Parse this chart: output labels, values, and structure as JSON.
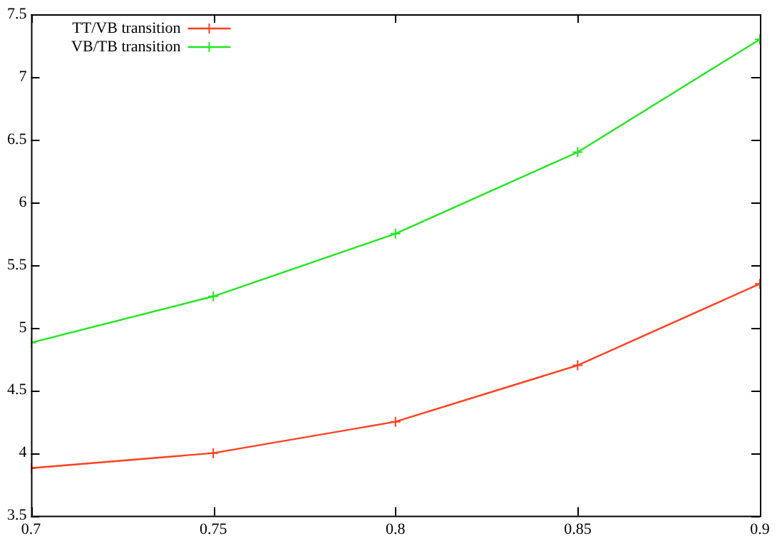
{
  "chart_data": {
    "type": "line",
    "x": [
      0.7,
      0.75,
      0.8,
      0.85,
      0.9
    ],
    "series": [
      {
        "name": "TT/VB transition",
        "color": "#ff3f1f",
        "values": [
          3.88,
          4.0,
          4.25,
          4.7,
          5.35
        ]
      },
      {
        "name": "VB/TB transition",
        "color": "#1fe61f",
        "values": [
          4.88,
          5.25,
          5.75,
          6.4,
          7.3
        ]
      }
    ],
    "xlim": [
      0.7,
      0.9
    ],
    "xticks": [
      0.7,
      0.75,
      0.8,
      0.85,
      0.9
    ],
    "ylim": [
      3.5,
      7.5
    ],
    "yticks": [
      3.5,
      4,
      4.5,
      5,
      5.5,
      6,
      6.5,
      7,
      7.5
    ],
    "grid": false,
    "legend": "top left",
    "marker": "cross",
    "line_style": "solid"
  }
}
